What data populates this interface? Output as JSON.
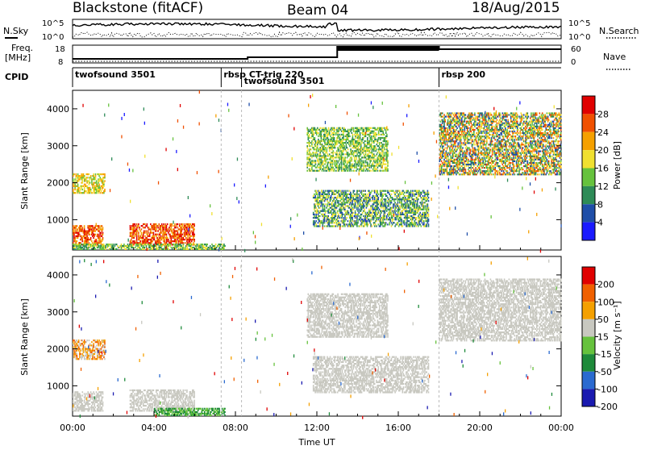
{
  "header": {
    "station": "Blackstone (fitACF)",
    "beam": "Beam 04",
    "date": "18/Aug/2015"
  },
  "nsky": {
    "label": "N.Sky",
    "ticks": [
      "10^5",
      "10^0"
    ],
    "right_label": "N.Search"
  },
  "freq": {
    "label_top": "Freq.",
    "label_unit": "[MHz]",
    "ticks": [
      "18",
      "8"
    ],
    "right_ticks": [
      "60",
      "0"
    ],
    "right_label": "Nave"
  },
  "cpid": {
    "label": "CPID",
    "segments": [
      {
        "text": "twofsound 3501",
        "start_hour": 0.0
      },
      {
        "text": "rbsp CT-trig 220",
        "start_hour": 7.3
      },
      {
        "text": "twofsound 3501",
        "start_hour": 8.3
      },
      {
        "text": "rbsp 200",
        "start_hour": 18.0
      }
    ]
  },
  "power": {
    "ylabel": "Slant Range [km]",
    "ticks": [
      "1000",
      "2000",
      "3000",
      "4000"
    ],
    "cbar_label": "Power [dB]",
    "cbar_ticks": [
      "4",
      "8",
      "12",
      "16",
      "20",
      "24",
      "28"
    ]
  },
  "velocity": {
    "ylabel": "Slant Range [km]",
    "ticks": [
      "1000",
      "2000",
      "3000",
      "4000"
    ],
    "cbar_label": "Velocity [m s⁻¹]",
    "cbar_ticks": [
      "200",
      "100",
      "50",
      "15",
      "-15",
      "-50",
      "-100",
      "-200"
    ]
  },
  "xaxis": {
    "label": "Time UT",
    "ticks": [
      "00:00",
      "04:00",
      "08:00",
      "12:00",
      "16:00",
      "20:00",
      "00:00"
    ]
  },
  "colors": {
    "power": [
      "#1a1aff",
      "#1f4ea8",
      "#2e8b57",
      "#66c23d",
      "#f0e030",
      "#f5a000",
      "#f05000",
      "#e00000"
    ],
    "velocity": [
      "#1a1ab0",
      "#2a6ad0",
      "#1e8a3a",
      "#66c23d",
      "#c8c8c0",
      "#f5a000",
      "#f06000",
      "#e00000"
    ]
  },
  "chart_data": [
    {
      "type": "heatmap",
      "title": "Power",
      "xlabel": "Time UT",
      "ylabel": "Slant Range [km]",
      "xlim": [
        0,
        24
      ],
      "ylim": [
        180,
        4500
      ],
      "colorbar": "Power [dB]",
      "regions": [
        {
          "t0": 0.0,
          "t1": 1.6,
          "r0": 1700,
          "r1": 2250,
          "level": [
            3,
            5
          ]
        },
        {
          "t0": 0.0,
          "t1": 1.5,
          "r0": 300,
          "r1": 850,
          "level": [
            5,
            7
          ]
        },
        {
          "t0": 2.8,
          "t1": 6.0,
          "r0": 300,
          "r1": 900,
          "level": [
            5,
            7
          ]
        },
        {
          "t0": 0.0,
          "t1": 7.5,
          "r0": 180,
          "r1": 350,
          "level": [
            2,
            4
          ]
        },
        {
          "t0": 11.8,
          "t1": 17.5,
          "r0": 800,
          "r1": 1800,
          "level": [
            1,
            4
          ]
        },
        {
          "t0": 11.5,
          "t1": 15.5,
          "r0": 2300,
          "r1": 3500,
          "level": [
            2,
            4
          ]
        },
        {
          "t0": 18.0,
          "t1": 24.0,
          "r0": 2200,
          "r1": 3900,
          "level": [
            1,
            6
          ]
        }
      ]
    },
    {
      "type": "heatmap",
      "title": "Velocity",
      "xlabel": "Time UT",
      "ylabel": "Slant Range [km]",
      "xlim": [
        0,
        24
      ],
      "ylim": [
        180,
        4500
      ],
      "colorbar": "Velocity [m s^-1]",
      "regions": [
        {
          "t0": 0.0,
          "t1": 1.6,
          "r0": 1700,
          "r1": 2250,
          "level": [
            4,
            6
          ]
        },
        {
          "t0": 0.0,
          "t1": 1.5,
          "r0": 300,
          "r1": 850,
          "level": [
            4,
            4
          ]
        },
        {
          "t0": 2.8,
          "t1": 6.0,
          "r0": 300,
          "r1": 900,
          "level": [
            4,
            4
          ]
        },
        {
          "t0": 4.0,
          "t1": 7.5,
          "r0": 180,
          "r1": 400,
          "level": [
            2,
            3
          ]
        },
        {
          "t0": 11.8,
          "t1": 17.5,
          "r0": 800,
          "r1": 1800,
          "level": [
            4,
            4
          ]
        },
        {
          "t0": 11.5,
          "t1": 15.5,
          "r0": 2300,
          "r1": 3500,
          "level": [
            4,
            4
          ]
        },
        {
          "t0": 18.0,
          "t1": 24.0,
          "r0": 2200,
          "r1": 3900,
          "level": [
            4,
            4
          ]
        }
      ]
    }
  ]
}
